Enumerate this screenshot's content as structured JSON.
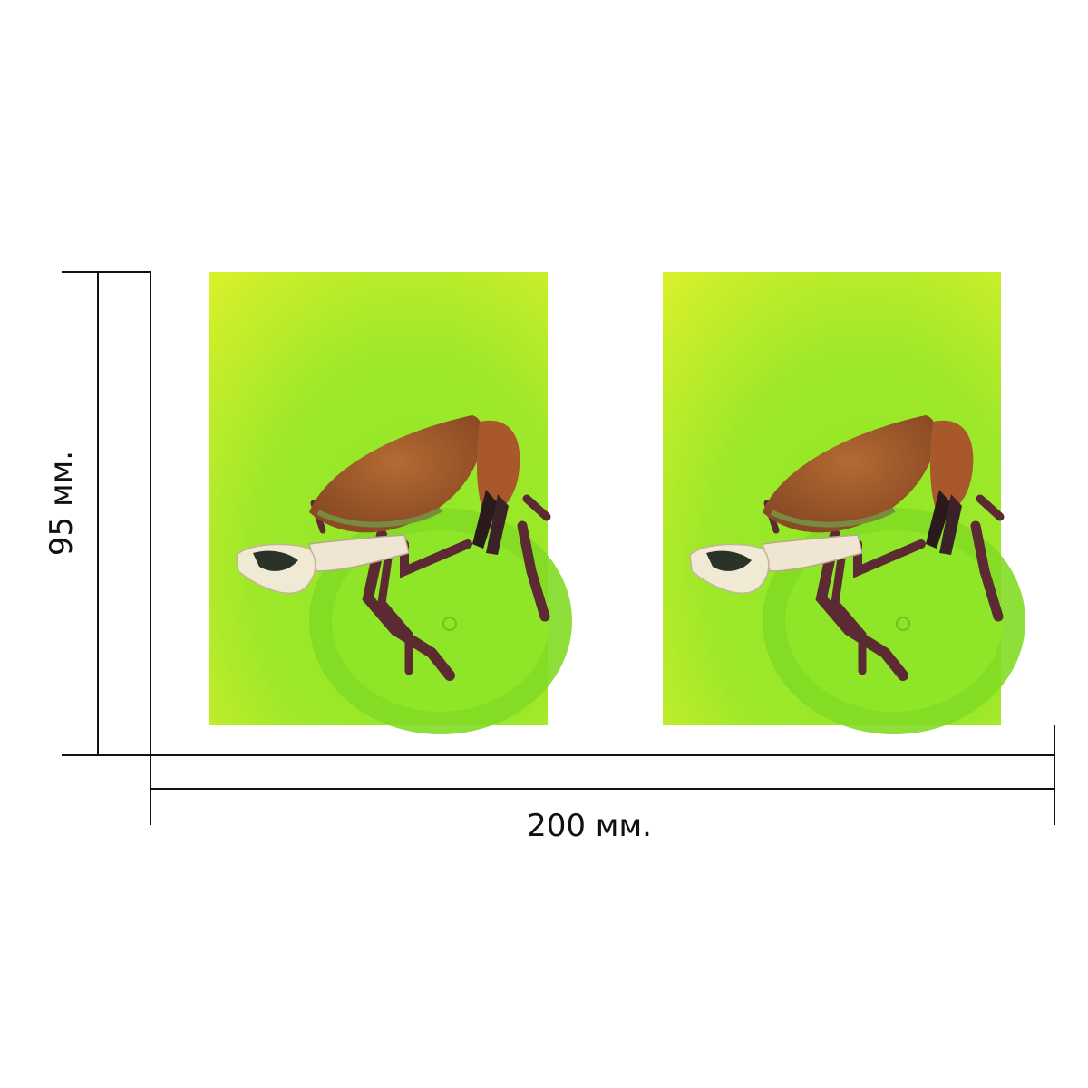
{
  "dimensions": {
    "height_label": "95 мм.",
    "width_label": "200 мм."
  },
  "panels": [
    {
      "subject": "crab-in-green-bucket"
    },
    {
      "subject": "crab-in-green-bucket"
    }
  ],
  "colors": {
    "bucket_green": "#8ee826",
    "bucket_yellow": "#d6f02a",
    "shell_orange": "#a45a2a",
    "claw_cream": "#f0ead4",
    "leg_purple": "#5b2a32",
    "line": "#111111"
  }
}
